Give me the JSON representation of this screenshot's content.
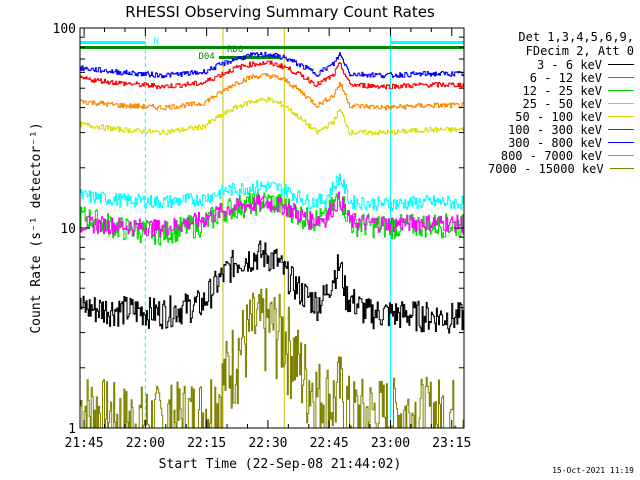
{
  "chart_data": {
    "type": "line",
    "title": "RHESSI Observing Summary Count Rates",
    "xlabel": "Start Time (22-Sep-08 21:44:02)",
    "ylabel": "Count Rate (s⁻¹ detector⁻¹)",
    "y_scale": "log",
    "ylim": [
      1,
      100
    ],
    "xlim_minutes": [
      0,
      94
    ],
    "x_tick_labels": [
      "21:45",
      "22:00",
      "22:15",
      "22:30",
      "22:45",
      "23:00",
      "23:15"
    ],
    "x_tick_minutes": [
      1,
      16,
      31,
      46,
      61,
      76,
      91
    ],
    "y_tick_labels": [
      "1",
      "10",
      "100"
    ],
    "legend_header": [
      "Det 1,3,4,5,6,9,",
      "FDecim 2, Att 0"
    ],
    "flag_labels": [
      "N",
      "RD0",
      "D04"
    ],
    "series": [
      {
        "name": "3 - 6 keV",
        "color": "#000000",
        "x": [
          0,
          10,
          20,
          30,
          34,
          38,
          42,
          44,
          46,
          48,
          50,
          54,
          58,
          60,
          62,
          63.5,
          65,
          70,
          80,
          90,
          94
        ],
        "y": [
          4,
          3.9,
          3.8,
          4.2,
          5.5,
          6.8,
          7.2,
          7.4,
          7.3,
          6.9,
          6.0,
          4.8,
          4.2,
          4.6,
          5.8,
          6.6,
          4.6,
          3.8,
          3.7,
          3.6,
          3.6
        ]
      },
      {
        "name": "6 - 12 keV",
        "color": "#ff00ff",
        "x": [
          0,
          10,
          20,
          30,
          36,
          42,
          46,
          50,
          56,
          60,
          63.5,
          66,
          75,
          85,
          94
        ],
        "y": [
          10.5,
          10.3,
          10.0,
          11.0,
          12.5,
          13.2,
          13.4,
          12.8,
          11.0,
          11.2,
          14.0,
          10.8,
          10.5,
          10.7,
          10.5
        ]
      },
      {
        "name": "12 - 25 keV",
        "color": "#00dd00",
        "x": [
          0,
          10,
          20,
          30,
          36,
          42,
          46,
          50,
          56,
          60,
          63.5,
          66,
          75,
          85,
          94
        ],
        "y": [
          11.5,
          10.0,
          9.5,
          10.5,
          12.5,
          13.3,
          13.6,
          12.9,
          11.0,
          11.2,
          14.5,
          10.6,
          10.2,
          10.4,
          10.3
        ]
      },
      {
        "name": "25 - 50 keV",
        "color": "#00ffff",
        "x": [
          0,
          10,
          20,
          30,
          36,
          42,
          46,
          50,
          56,
          60,
          63.5,
          66,
          75,
          85,
          94
        ],
        "y": [
          14.5,
          13.8,
          13.5,
          14.0,
          15.5,
          16.0,
          16.2,
          15.6,
          13.5,
          13.8,
          18.0,
          13.5,
          13.2,
          13.5,
          13.4
        ]
      },
      {
        "name": "50 - 100 keV",
        "color": "#dddd00",
        "x": [
          0,
          10,
          20,
          30,
          34,
          38,
          42,
          46,
          50,
          54,
          58,
          62,
          63.5,
          66,
          75,
          85,
          94
        ],
        "y": [
          33,
          31,
          30,
          32,
          36,
          40,
          43,
          44,
          41,
          35,
          30,
          34,
          39,
          30,
          30,
          31,
          31
        ]
      },
      {
        "name": "100 - 300 keV",
        "color": "#ff0000",
        "x": [
          0,
          10,
          20,
          30,
          34,
          38,
          42,
          46,
          50,
          54,
          58,
          62,
          63.5,
          66,
          75,
          85,
          94
        ],
        "y": [
          56,
          53,
          51,
          53,
          58,
          63,
          66,
          67,
          64,
          58,
          52,
          58,
          66,
          52,
          51,
          52,
          52
        ]
      },
      {
        "name": "300 - 800 keV",
        "color": "#0000ff",
        "x": [
          0,
          10,
          20,
          30,
          34,
          38,
          42,
          46,
          50,
          54,
          58,
          62,
          63.5,
          66,
          75,
          85,
          94
        ],
        "y": [
          63,
          60,
          58,
          60,
          65,
          70,
          73,
          74,
          71,
          65,
          59,
          66,
          74,
          59,
          58,
          59,
          59
        ]
      },
      {
        "name": "800 - 7000 keV",
        "color": "#ff8800",
        "x": [
          0,
          10,
          20,
          30,
          34,
          38,
          42,
          46,
          50,
          54,
          58,
          62,
          63.5,
          66,
          75,
          85,
          94
        ],
        "y": [
          43,
          41,
          40,
          42,
          47,
          53,
          57,
          58,
          55,
          48,
          41,
          46,
          53,
          41,
          40,
          41,
          41
        ]
      },
      {
        "name": "7000 - 15000 keV",
        "color": "#808000",
        "x": [
          0,
          10,
          20,
          30,
          34,
          38,
          42,
          46,
          50,
          54,
          58,
          62,
          63.5,
          66,
          75,
          85,
          94
        ],
        "y": [
          1.3,
          1.1,
          1.1,
          1.2,
          1.5,
          2.4,
          3.2,
          3.4,
          3.0,
          2.0,
          1.5,
          1.4,
          1.6,
          1.2,
          1.2,
          1.2,
          1.2
        ]
      }
    ]
  },
  "footer": {
    "date_stamp": "15-Oct-2021 11:19"
  }
}
